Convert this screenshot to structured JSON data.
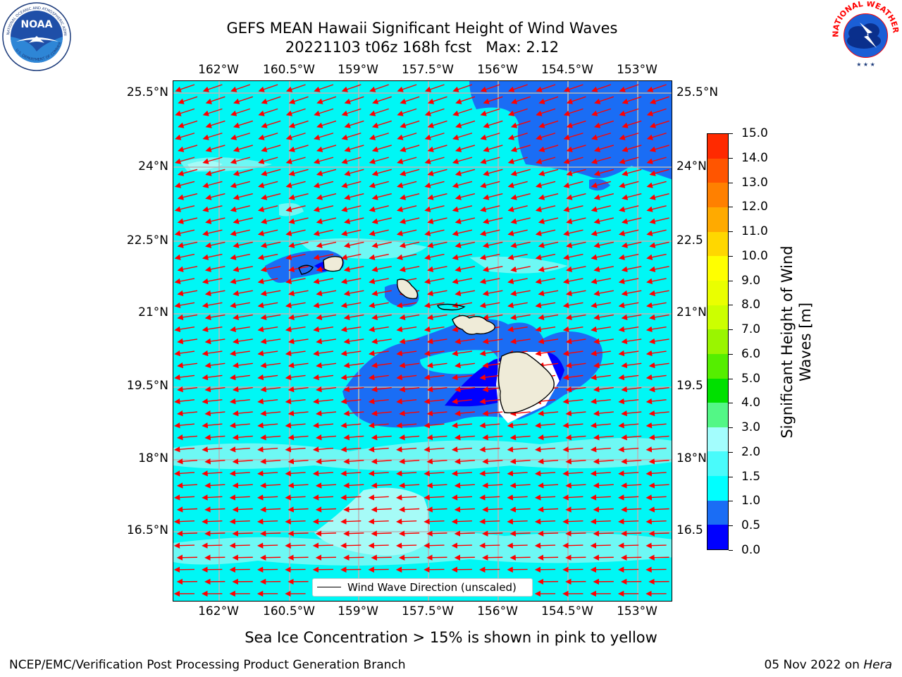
{
  "header": {
    "title_line1": "GEFS MEAN Hawaii Significant Height of Wind Waves",
    "title_line2": "20221103 t06z 168h fcst   Max: 2.12"
  },
  "logos": {
    "left": {
      "name": "noaa-logo",
      "text": "NOAA",
      "ring_text": "NATIONAL OCEANIC AND ATMOSPHERIC ADMINISTRATION · U.S. DEPARTMENT OF COMMERCE"
    },
    "right": {
      "name": "nws-logo",
      "ring_text": "NATIONAL WEATHER SERVICE"
    }
  },
  "map": {
    "lon_ticks": [
      "162°W",
      "160.5°W",
      "159°W",
      "157.5°W",
      "156°W",
      "154.5°W",
      "153°W"
    ],
    "lat_ticks": [
      "25.5°N",
      "24°N",
      "22.5°N",
      "21°N",
      "19.5°N",
      "18°N",
      "16.5°N"
    ],
    "lat_ticks_right": [
      "25.5°N",
      "24°N",
      "22.5",
      "21°N",
      "19.5",
      "18°N",
      "16.5"
    ],
    "legend_label": "Wind Wave Direction (unscaled)",
    "arrow_color": "#ff0000",
    "land_color": "#efebd8"
  },
  "colorbar": {
    "title_line1": "Significant Height of Wind",
    "title_line2": "Waves [m]",
    "labels": [
      "0.0",
      "0.5",
      "1.0",
      "1.5",
      "2.0",
      "3.0",
      "4.0",
      "5.0",
      "6.0",
      "7.0",
      "8.0",
      "9.0",
      "10.0",
      "11.0",
      "12.0",
      "13.0",
      "14.0",
      "15.0"
    ],
    "colors": [
      "#0000ff",
      "#1a6df5",
      "#00ffff",
      "#49fbfb",
      "#a3fdfd",
      "#53f786",
      "#00e000",
      "#55ee00",
      "#9af500",
      "#ccff00",
      "#eaff00",
      "#ffff00",
      "#ffd700",
      "#ffaa00",
      "#ff8000",
      "#ff5500",
      "#ff2a00",
      "#ff0000"
    ]
  },
  "notes": {
    "sea_ice": "Sea Ice Concentration > 15% is shown in pink to yellow",
    "footer_left": "NCEP/EMC/Verification Post Processing Product Generation Branch",
    "footer_date": "05 Nov 2022 on ",
    "footer_host": "Hera"
  }
}
